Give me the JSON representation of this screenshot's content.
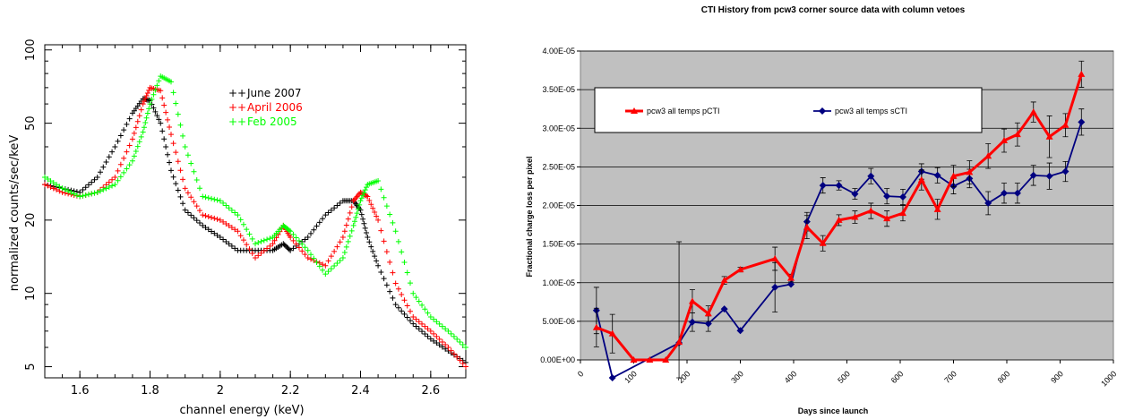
{
  "chart_data": [
    {
      "type": "scatter",
      "title": "",
      "xlabel": "channel energy (keV)",
      "ylabel": "normalized counts/sec/keV",
      "xlim": [
        1.5,
        2.7
      ],
      "ylim": [
        4.5,
        105
      ],
      "y_scale": "log",
      "x_ticks": [
        "1.6",
        "1.8",
        "2",
        "2.2",
        "2.4",
        "2.6"
      ],
      "y_ticks": [
        "5",
        "10",
        "20",
        "50",
        "100"
      ],
      "legend_position": "top-right",
      "series": [
        {
          "name": "June 2007",
          "color": "#000000",
          "x": [
            1.5,
            1.55,
            1.6,
            1.65,
            1.7,
            1.75,
            1.78,
            1.8,
            1.83,
            1.86,
            1.9,
            1.95,
            2.0,
            2.05,
            2.1,
            2.15,
            2.18,
            2.2,
            2.25,
            2.3,
            2.35,
            2.38,
            2.4,
            2.42,
            2.45,
            2.5,
            2.55,
            2.6,
            2.65,
            2.7
          ],
          "y": [
            28,
            27,
            26,
            30,
            40,
            55,
            63,
            62,
            50,
            32,
            22,
            19,
            17,
            15,
            15,
            15,
            16,
            15,
            17,
            21,
            24,
            24,
            22,
            17,
            13,
            9,
            7.5,
            6.5,
            5.8,
            5.2
          ]
        },
        {
          "name": "April 2006",
          "color": "#ff0000",
          "x": [
            1.5,
            1.55,
            1.6,
            1.65,
            1.7,
            1.75,
            1.78,
            1.8,
            1.83,
            1.86,
            1.9,
            1.95,
            2.0,
            2.05,
            2.1,
            2.15,
            2.18,
            2.2,
            2.25,
            2.3,
            2.35,
            2.38,
            2.4,
            2.42,
            2.45,
            2.5,
            2.55,
            2.6,
            2.65,
            2.7
          ],
          "y": [
            28,
            26,
            25,
            26,
            30,
            43,
            60,
            70,
            68,
            45,
            27,
            21,
            20,
            18,
            14,
            16,
            19,
            17,
            14,
            13,
            17,
            24,
            26,
            25,
            20,
            11,
            8,
            7,
            6,
            5
          ]
        },
        {
          "name": "Feb 2005",
          "color": "#00ff00",
          "x": [
            1.5,
            1.55,
            1.6,
            1.65,
            1.7,
            1.75,
            1.78,
            1.8,
            1.83,
            1.86,
            1.9,
            1.95,
            2.0,
            2.05,
            2.1,
            2.15,
            2.18,
            2.2,
            2.25,
            2.3,
            2.35,
            2.38,
            2.4,
            2.42,
            2.45,
            2.5,
            2.55,
            2.6,
            2.65,
            2.7
          ],
          "y": [
            30,
            27,
            25,
            26,
            28,
            35,
            46,
            60,
            78,
            74,
            40,
            25,
            24,
            21,
            16,
            17,
            19,
            18,
            15,
            12,
            14,
            19,
            24,
            28,
            29,
            18,
            10,
            8,
            7,
            6
          ]
        }
      ]
    },
    {
      "type": "line",
      "title": "CTI History from pcw3 corner source data with  column vetoes",
      "xlabel": "Days since launch",
      "ylabel": "Fractional charge loss per pixel",
      "xlim": [
        0,
        1000
      ],
      "ylim": [
        0,
        4e-05
      ],
      "x_ticks": [
        "0",
        "100",
        "200",
        "300",
        "400",
        "500",
        "600",
        "700",
        "800",
        "900",
        "1000"
      ],
      "y_ticks": [
        "0.00E+00",
        "5.00E-06",
        "1.00E-05",
        "1.50E-05",
        "2.00E-05",
        "2.50E-05",
        "3.00E-05",
        "3.50E-05",
        "4.00E-05"
      ],
      "grid": true,
      "legend_position": "top-left",
      "series": [
        {
          "name": "pcw3 all temps pCTI",
          "color": "#ff0000",
          "x": [
            30,
            60,
            100,
            130,
            160,
            185,
            210,
            240,
            270,
            300,
            365,
            395,
            425,
            455,
            485,
            515,
            545,
            575,
            605,
            640,
            670,
            700,
            730,
            765,
            795,
            820,
            850,
            880,
            910,
            940
          ],
          "y": [
            4.2e-06,
            3.4e-06,
            0,
            0,
            0,
            2.3e-06,
            7.6e-06,
            6e-06,
            1.03e-05,
            1.17e-05,
            1.31e-05,
            1.06e-05,
            1.72e-05,
            1.51e-05,
            1.81e-05,
            1.85e-05,
            1.93e-05,
            1.83e-05,
            1.9e-05,
            2.33e-05,
            1.95e-05,
            2.38e-05,
            2.43e-05,
            2.64e-05,
            2.84e-05,
            2.92e-05,
            3.21e-05,
            2.89e-05,
            3.04e-05,
            3.7e-05
          ],
          "err": [
            2.5e-06,
            2.5e-06,
            0,
            0,
            0,
            1.3e-05,
            1.5e-06,
            1e-06,
            5e-07,
            3e-07,
            1.5e-06,
            5e-07,
            1.5e-06,
            1e-06,
            7e-07,
            8e-07,
            1e-06,
            1e-06,
            1e-06,
            1.3e-06,
            1.3e-06,
            1.4e-06,
            1.5e-06,
            1.6e-06,
            1.5e-06,
            1.5e-06,
            1.3e-06,
            2.7e-06,
            1.5e-06,
            1.7e-06
          ]
        },
        {
          "name": "pcw3 all temps sCTI",
          "color": "#000080",
          "x": [
            30,
            60,
            185,
            210,
            240,
            270,
            300,
            365,
            395,
            425,
            455,
            485,
            515,
            545,
            575,
            605,
            640,
            670,
            700,
            730,
            765,
            795,
            820,
            850,
            880,
            910,
            940
          ],
          "y": [
            6.4e-06,
            -5e-06,
            2.2e-06,
            4.9e-06,
            4.7e-06,
            6.6e-06,
            3.8e-06,
            9.4e-06,
            9.8e-06,
            1.79e-05,
            2.26e-05,
            2.26e-05,
            2.15e-05,
            2.38e-05,
            2.12e-05,
            2.11e-05,
            2.44e-05,
            2.39e-05,
            2.25e-05,
            2.35e-05,
            2.03e-05,
            2.16e-05,
            2.16e-05,
            2.39e-05,
            2.38e-05,
            2.44e-05,
            3.08e-05
          ],
          "err": [
            3e-06,
            0,
            0,
            1.2e-06,
            1e-06,
            0,
            0,
            3.2e-06,
            0,
            1.2e-06,
            1e-06,
            6e-07,
            7e-07,
            1e-06,
            1e-06,
            1e-06,
            1e-06,
            1e-06,
            1e-06,
            1.2e-06,
            1.5e-06,
            1.3e-06,
            1.3e-06,
            1.3e-06,
            1.7e-06,
            1.3e-06,
            1.7e-06
          ]
        }
      ]
    }
  ]
}
